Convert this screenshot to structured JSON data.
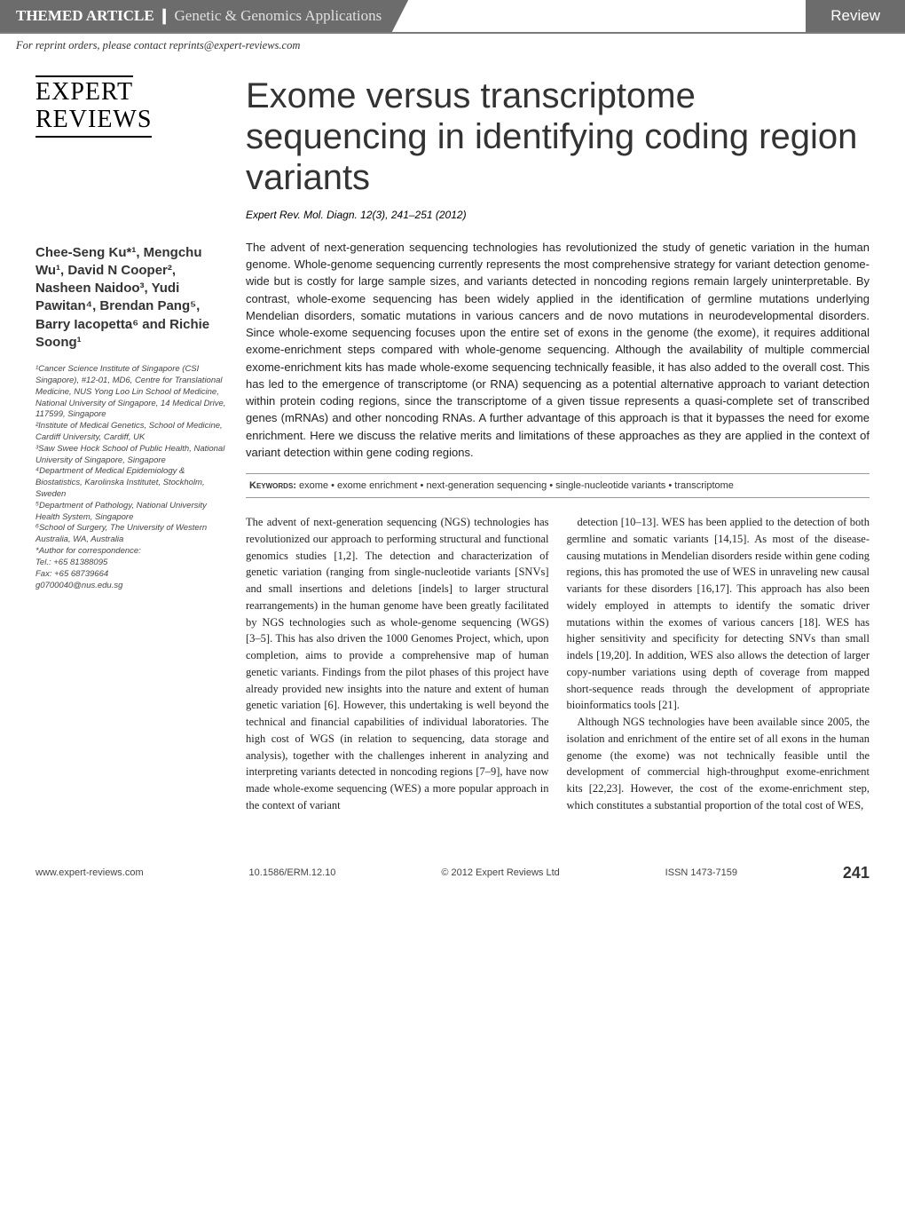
{
  "header": {
    "themed_label": "THEMED ARTICLE",
    "themed_subject": "Genetic & Genomics Applications",
    "review_badge": "Review",
    "reprint_line": "For reprint orders, please contact reprints@expert-reviews.com"
  },
  "logo": {
    "line1": "EXPERT",
    "line2": "REVIEWS"
  },
  "title": "Exome versus transcriptome sequencing in identifying coding region variants",
  "citation": "Expert Rev. Mol. Diagn. 12(3), 241–251 (2012)",
  "authors": "Chee-Seng Ku*¹, Mengchu Wu¹, David N Cooper², Nasheen Naidoo³, Yudi Pawitan⁴, Brendan Pang⁵, Barry Iacopetta⁶ and Richie Soong¹",
  "affiliations": "¹Cancer Science Institute of Singapore (CSI Singapore), #12-01, MD6, Centre for Translational Medicine, NUS Yong Loo Lin School of Medicine, National University of Singapore, 14 Medical Drive, 117599, Singapore\n²Institute of Medical Genetics, School of Medicine, Cardiff University, Cardiff, UK\n³Saw Swee Hock School of Public Health, National University of Singapore, Singapore\n⁴Department of Medical Epidemiology & Biostatistics, Karolinska Institutet, Stockholm, Sweden\n⁵Department of Pathology, National University Health System, Singapore\n⁶School of Surgery, The University of Western Australia, WA, Australia\n*Author for correspondence:\nTel.: +65 81388095\nFax: +65 68739664\ng0700040@nus.edu.sg",
  "abstract": "The advent of next-generation sequencing technologies has revolutionized the study of genetic variation in the human genome. Whole-genome sequencing currently represents the most comprehensive strategy for variant detection genome-wide but is costly for large sample sizes, and variants detected in noncoding regions remain largely uninterpretable. By contrast, whole-exome sequencing has been widely applied in the identification of germline mutations underlying Mendelian disorders, somatic mutations in various cancers and de novo mutations in neurodevelopmental disorders. Since whole-exome sequencing focuses upon the entire set of exons in the genome (the exome), it requires additional exome-enrichment steps compared with whole-genome sequencing. Although the availability of multiple commercial exome-enrichment kits has made whole-exome sequencing technically feasible, it has also added to the overall cost. This has led to the emergence of transcriptome (or RNA) sequencing as a potential alternative approach to variant detection within protein coding regions, since the transcriptome of a given tissue represents a quasi-complete set of transcribed genes (mRNAs) and other noncoding RNAs. A further advantage of this approach is that it bypasses the need for exome enrichment. Here we discuss the relative merits and limitations of these approaches as they are applied in the context of variant detection within gene coding regions.",
  "keywords_label": "Keywords:",
  "keywords": "exome • exome enrichment • next-generation sequencing • single-nucleotide variants • transcriptome",
  "body_para1": "The advent of next-generation sequencing (NGS) technologies has revolutionized our approach to performing structural and functional genomics studies [1,2]. The detection and characterization of genetic variation (ranging from single-nucleotide variants [SNVs] and small insertions and deletions [indels] to larger structural rearrangements) in the human genome have been greatly facilitated by NGS technologies such as whole-genome sequencing (WGS) [3–5]. This has also driven the 1000 Genomes Project, which, upon completion, aims to provide a comprehensive map of human genetic variants. Findings from the pilot phases of this project have already provided new insights into the nature and extent of human genetic variation [6]. However, this undertaking is well beyond the technical and financial capabilities of individual laboratories. The high cost of WGS (in relation to sequencing, data storage and analysis), together with the challenges inherent in analyzing and interpreting variants detected in noncoding regions [7–9], have now made whole-exome sequencing (WES) a more popular approach in the context of variant",
  "body_para2": "detection [10–13]. WES has been applied to the detection of both germline and somatic variants [14,15]. As most of the disease-causing mutations in Mendelian disorders reside within gene coding regions, this has promoted the use of WES in unraveling new causal variants for these disorders [16,17]. This approach has also been widely employed in attempts to identify the somatic driver mutations within the exomes of various cancers [18]. WES has higher sensitivity and specificity for detecting SNVs than small indels [19,20]. In addition, WES also allows the detection of larger copy-number variations using depth of coverage from mapped short-sequence reads through the development of appropriate bioinformatics tools [21].",
  "body_para3": "Although NGS technologies have been available since 2005, the isolation and enrichment of the entire set of all exons in the human genome (the exome) was not technically feasible until the development of commercial high-throughput exome-enrichment kits [22,23]. However, the cost of the exome-enrichment step, which constitutes a substantial proportion of the total cost of WES,",
  "footer": {
    "website": "www.expert-reviews.com",
    "doi": "10.1586/ERM.12.10",
    "copyright": "© 2012 Expert Reviews Ltd",
    "issn": "ISSN 1473-7159",
    "page": "241"
  },
  "colors": {
    "header_grey": "#6c6c6c",
    "text": "#222222",
    "border": "#999999"
  }
}
